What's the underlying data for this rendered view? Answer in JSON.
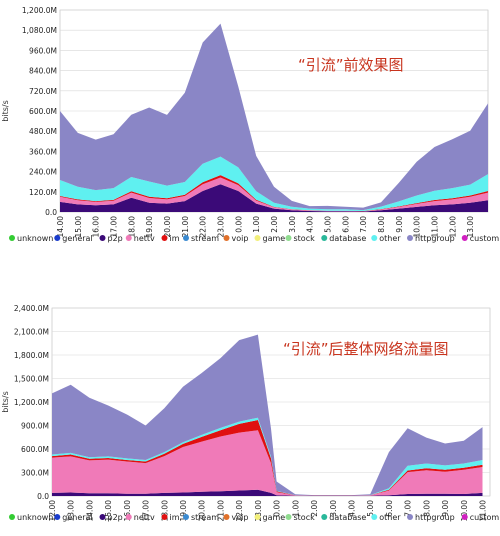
{
  "chart_data": [
    {
      "type": "area",
      "stacked": true,
      "annotation": "“引流”前效果图",
      "ylabel": "bits/s",
      "y_ticks": [
        "0.0",
        "120.0M",
        "240.0M",
        "360.0M",
        "480.0M",
        "600.0M",
        "720.0M",
        "840.0M",
        "960.0M",
        "1,080.0M",
        "1,200.0M"
      ],
      "ylim": [
        0,
        1200
      ],
      "x_ticks": [
        "14.00",
        "15.00",
        "16.00",
        "17.00",
        "18.00",
        "19.00",
        "20.00",
        "21.00",
        "22.00",
        "23.00",
        "0.00",
        "1.00",
        "2.00",
        "3.00",
        "4.00",
        "5.00",
        "6.00",
        "7.00",
        "8.00",
        "9.00",
        "10.00",
        "11.00",
        "12.00",
        "13.00"
      ],
      "grid": true,
      "legend_position": "bottom",
      "x": [
        0,
        1,
        2,
        3,
        4,
        5,
        6,
        7,
        8,
        9,
        10,
        11,
        12,
        13,
        14,
        15,
        16,
        17,
        18,
        19,
        20,
        21,
        22,
        23,
        24
      ],
      "series": [
        {
          "name": "p2p",
          "values": [
            60,
            45,
            40,
            45,
            85,
            55,
            50,
            65,
            125,
            165,
            125,
            50,
            20,
            10,
            6,
            5,
            5,
            3,
            10,
            20,
            30,
            40,
            45,
            55,
            70
          ]
        },
        {
          "name": "nettv",
          "values": [
            30,
            25,
            20,
            22,
            30,
            28,
            25,
            30,
            40,
            40,
            35,
            18,
            8,
            5,
            3,
            2,
            2,
            2,
            5,
            10,
            18,
            25,
            30,
            35,
            45
          ]
        },
        {
          "name": "im",
          "values": [
            5,
            5,
            5,
            5,
            8,
            8,
            7,
            8,
            12,
            14,
            10,
            5,
            2,
            1,
            1,
            1,
            1,
            1,
            2,
            3,
            5,
            6,
            7,
            8,
            10
          ]
        },
        {
          "name": "other",
          "values": [
            95,
            75,
            65,
            70,
            85,
            90,
            75,
            75,
            110,
            110,
            95,
            50,
            25,
            15,
            10,
            8,
            8,
            5,
            15,
            30,
            45,
            55,
            60,
            65,
            100
          ]
        },
        {
          "name": "httpgroup",
          "values": [
            410,
            320,
            300,
            320,
            370,
            440,
            420,
            530,
            720,
            790,
            480,
            210,
            95,
            35,
            15,
            20,
            15,
            15,
            25,
            110,
            200,
            260,
            290,
            320,
            420
          ]
        }
      ]
    },
    {
      "type": "area",
      "stacked": true,
      "annotation": "“引流”后整体网络流量图",
      "ylabel": "bits/s",
      "y_ticks": [
        "0.0",
        "300.0M",
        "600.0M",
        "900.0M",
        "1,200.0M",
        "1,500.0M",
        "1,800.0M",
        "2,100.0M",
        "2,400.0M"
      ],
      "ylim": [
        0,
        2400
      ],
      "x_ticks": [
        "12.00",
        "13.00",
        "14.00",
        "15.00",
        "16.00",
        "17.00",
        "18.00",
        "19.00",
        "20.00",
        "21.00",
        "22.00",
        "23.00",
        "0.00",
        "1.00",
        "2.00",
        "3.00",
        "4.00",
        "5.00",
        "6.00",
        "7.00",
        "8.00",
        "9.00",
        "10.00",
        "11.00"
      ],
      "grid": true,
      "legend_position": "bottom",
      "x": [
        0,
        1,
        2,
        3,
        4,
        5,
        6,
        7,
        8,
        9,
        10,
        11,
        11.7,
        12,
        13,
        14,
        15,
        16,
        17,
        18,
        19,
        20,
        21,
        22,
        23
      ],
      "series": [
        {
          "name": "p2p",
          "values": [
            40,
            45,
            35,
            35,
            30,
            30,
            40,
            45,
            55,
            60,
            70,
            80,
            40,
            10,
            3,
            2,
            2,
            2,
            3,
            10,
            25,
            30,
            30,
            25,
            40
          ]
        },
        {
          "name": "nettv",
          "values": [
            450,
            460,
            420,
            430,
            410,
            390,
            470,
            580,
            640,
            700,
            740,
            760,
            380,
            40,
            5,
            3,
            3,
            3,
            5,
            60,
            280,
            300,
            280,
            310,
            330
          ]
        },
        {
          "name": "im",
          "values": [
            20,
            25,
            20,
            20,
            20,
            20,
            30,
            40,
            60,
            80,
            110,
            130,
            60,
            10,
            2,
            1,
            1,
            1,
            2,
            10,
            20,
            25,
            25,
            25,
            30
          ]
        },
        {
          "name": "other",
          "values": [
            20,
            20,
            20,
            20,
            20,
            20,
            20,
            20,
            25,
            30,
            30,
            30,
            20,
            5,
            2,
            1,
            1,
            1,
            2,
            20,
            60,
            60,
            55,
            55,
            60
          ]
        },
        {
          "name": "httpgroup",
          "values": [
            780,
            870,
            760,
            650,
            560,
            440,
            560,
            710,
            790,
            890,
            1040,
            1060,
            360,
            120,
            10,
            5,
            5,
            5,
            10,
            460,
            480,
            330,
            280,
            290,
            420
          ]
        }
      ]
    }
  ],
  "legend": [
    {
      "label": "unknown",
      "color": "#33cc33"
    },
    {
      "label": "general",
      "color": "#1a3ccc"
    },
    {
      "label": "p2p",
      "color": "#3b0a78"
    },
    {
      "label": "nettv",
      "color": "#f07ab8"
    },
    {
      "label": "im",
      "color": "#e01010"
    },
    {
      "label": "stream",
      "color": "#3a8ad0"
    },
    {
      "label": "voip",
      "color": "#e0702a"
    },
    {
      "label": "game",
      "color": "#f2ef7a"
    },
    {
      "label": "stock",
      "color": "#8fdc8f"
    },
    {
      "label": "database",
      "color": "#2ab89a"
    },
    {
      "label": "other",
      "color": "#5ff0f0"
    },
    {
      "label": "httpgroup",
      "color": "#8a86c6"
    },
    {
      "label": "custom",
      "color": "#d020c0"
    }
  ]
}
